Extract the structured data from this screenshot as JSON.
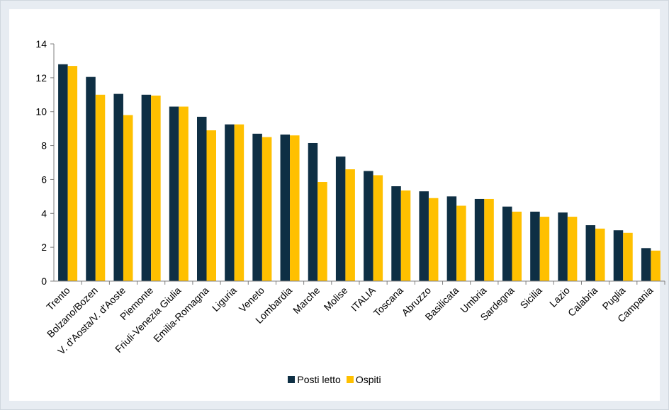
{
  "chart_data": {
    "type": "bar",
    "title": "",
    "xlabel": "",
    "ylabel": "",
    "ylim": [
      0,
      14
    ],
    "yticks": [
      0,
      2,
      4,
      6,
      8,
      10,
      12,
      14
    ],
    "grid": false,
    "legend_position": "bottom",
    "categories": [
      "Trento",
      "Bolzano/Bozen",
      "V. d'Aosta/V. d'Aoste",
      "Piemonte",
      "Friuli-Venezia Giulia",
      "Emilia-Romagna",
      "Liguria",
      "Veneto",
      "Lombardia",
      "Marche",
      "Molise",
      "ITALIA",
      "Toscana",
      "Abruzzo",
      "Basilicata",
      "Umbria",
      "Sardegna",
      "Sicilia",
      "Lazio",
      "Calabria",
      "Puglia",
      "Campania"
    ],
    "series": [
      {
        "name": "Posti letto",
        "color": "#0e2f44",
        "values": [
          12.8,
          12.05,
          11.05,
          11.0,
          10.3,
          9.7,
          9.25,
          8.7,
          8.65,
          8.15,
          7.35,
          6.5,
          5.6,
          5.3,
          5.0,
          4.85,
          4.4,
          4.1,
          4.05,
          3.3,
          3.0,
          1.95
        ]
      },
      {
        "name": "Ospiti",
        "color": "#ffc000",
        "values": [
          12.7,
          11.0,
          9.8,
          10.95,
          10.3,
          8.9,
          9.25,
          8.5,
          8.6,
          5.85,
          6.6,
          6.25,
          5.35,
          4.9,
          4.45,
          4.85,
          4.1,
          3.8,
          3.8,
          3.1,
          2.85,
          1.8
        ]
      }
    ]
  }
}
